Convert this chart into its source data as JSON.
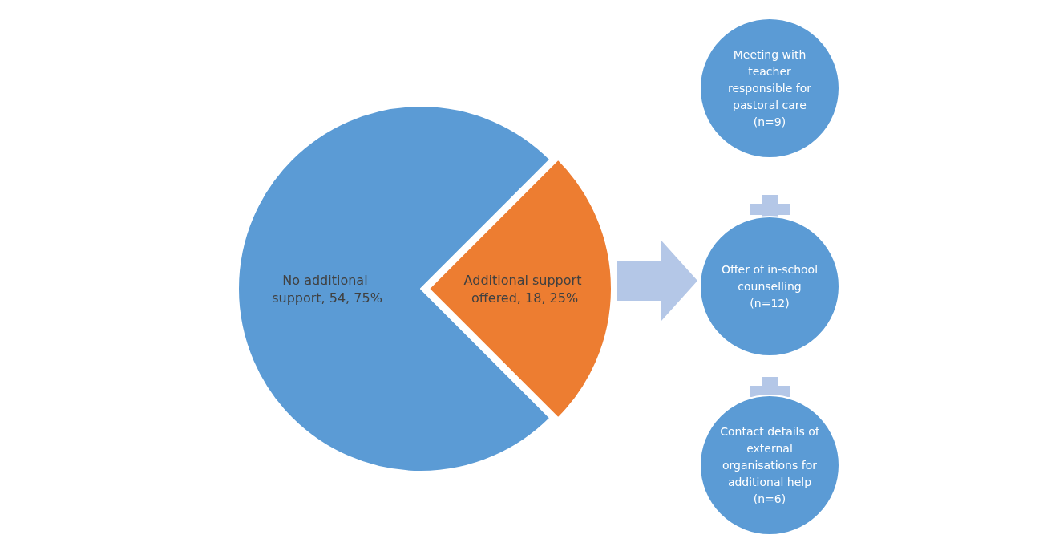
{
  "chart_data": {
    "type": "pie",
    "categories": [
      "No additional support",
      "Additional support offered"
    ],
    "values": [
      54,
      18
    ],
    "colors": [
      "#5b9bd5",
      "#ed7d31"
    ],
    "value_labels": [
      "54, 75%",
      "18, 25%"
    ],
    "annotations": [
      "Meeting with teacher responsible for pastoral care (n=9)",
      "Offer of in-school counselling (n=12)",
      "Contact details of external organisations for additional help (n=6)"
    ]
  }
}
